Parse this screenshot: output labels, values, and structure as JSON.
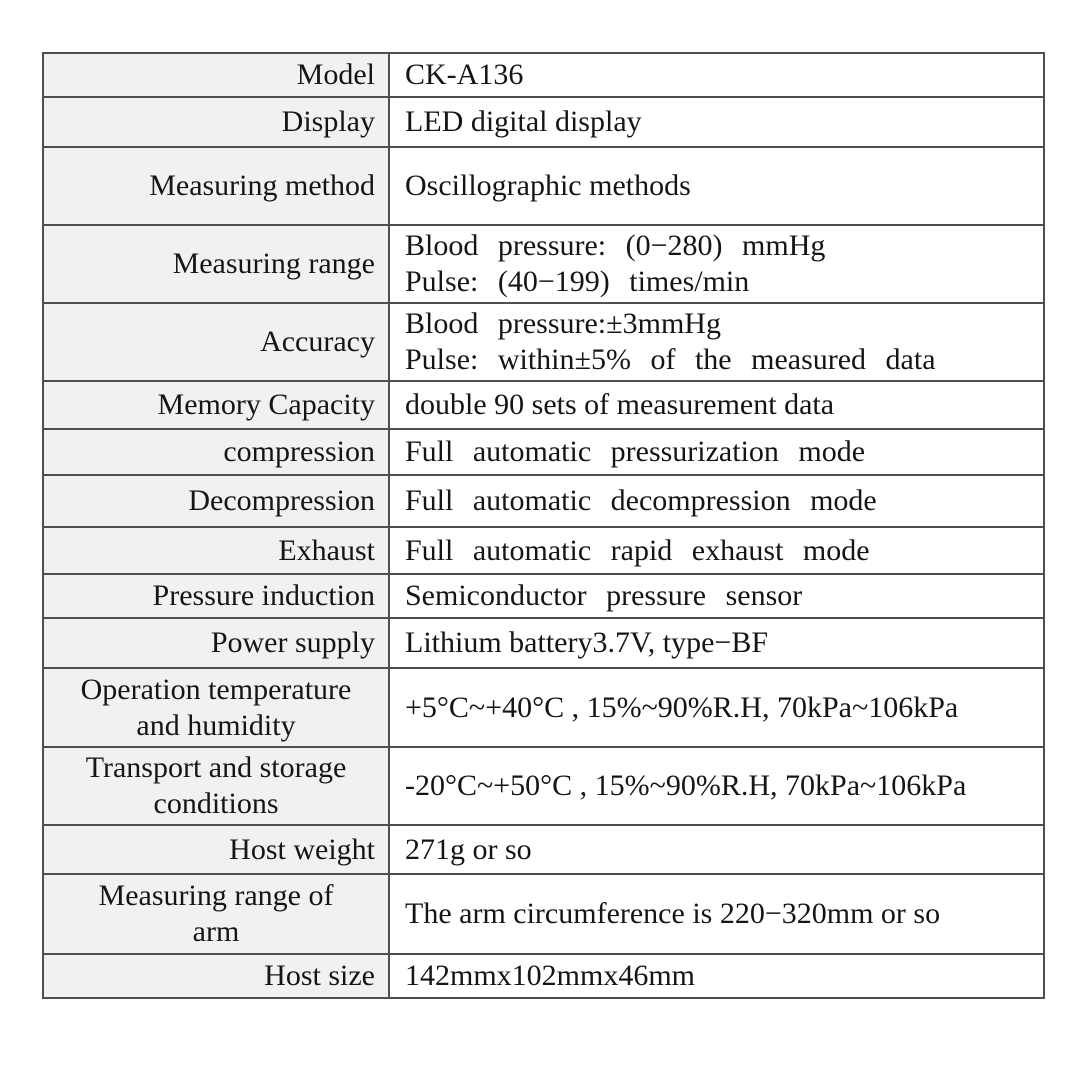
{
  "page": {
    "background": "#ffffff",
    "text_color": "#151515"
  },
  "table": {
    "name": "product-specification-table",
    "label_column_bg": "#f1f1f1",
    "border_color": "#4f4f4f",
    "rows": [
      {
        "label_lines": [
          "Model"
        ],
        "value_lines": [
          "CK-A136"
        ],
        "value_spread": false
      },
      {
        "label_lines": [
          "Display"
        ],
        "value_lines": [
          "LED digital display"
        ],
        "value_spread": false
      },
      {
        "label_lines": [
          "Measuring method"
        ],
        "value_lines": [
          "Oscillographic methods"
        ],
        "value_spread": false
      },
      {
        "label_lines": [
          "Measuring range"
        ],
        "value_lines": [
          "Blood pressure: (0−280) mmHg",
          "Pulse: (40−199) times/min"
        ],
        "value_spread": true
      },
      {
        "label_lines": [
          "Accuracy"
        ],
        "value_lines": [
          "Blood pressure:±3mmHg",
          "Pulse: within±5% of the measured data"
        ],
        "value_spread": true
      },
      {
        "label_lines": [
          "Memory Capacity"
        ],
        "value_lines": [
          "double 90 sets of measurement data"
        ],
        "value_spread": false
      },
      {
        "label_lines": [
          "compression"
        ],
        "value_lines": [
          "Full automatic pressurization mode"
        ],
        "value_spread": true
      },
      {
        "label_lines": [
          "Decompression"
        ],
        "value_lines": [
          "Full automatic decompression mode"
        ],
        "value_spread": true
      },
      {
        "label_lines": [
          "Exhaust"
        ],
        "value_lines": [
          "Full automatic rapid exhaust mode"
        ],
        "value_spread": true
      },
      {
        "label_lines": [
          "Pressure induction"
        ],
        "value_lines": [
          "Semiconductor pressure sensor"
        ],
        "value_spread": true
      },
      {
        "label_lines": [
          "Power supply"
        ],
        "value_lines": [
          "Lithium battery3.7V, type−BF"
        ],
        "value_spread": false
      },
      {
        "label_lines": [
          "Operation temperature",
          "and humidity"
        ],
        "value_lines": [
          "+5°C~+40°C , 15%~90%R.H, 70kPa~106kPa"
        ],
        "value_spread": false
      },
      {
        "label_lines": [
          "Transport and storage",
          "conditions"
        ],
        "value_lines": [
          "-20°C~+50°C , 15%~90%R.H, 70kPa~106kPa"
        ],
        "value_spread": false
      },
      {
        "label_lines": [
          "Host weight"
        ],
        "value_lines": [
          "271g or so"
        ],
        "value_spread": false
      },
      {
        "label_lines": [
          "Measuring range of",
          "arm"
        ],
        "value_lines": [
          "The arm circumference is 220−320mm or so"
        ],
        "value_spread": false
      },
      {
        "label_lines": [
          "Host size"
        ],
        "value_lines": [
          "142mmx102mmx46mm"
        ],
        "value_spread": false
      }
    ]
  }
}
